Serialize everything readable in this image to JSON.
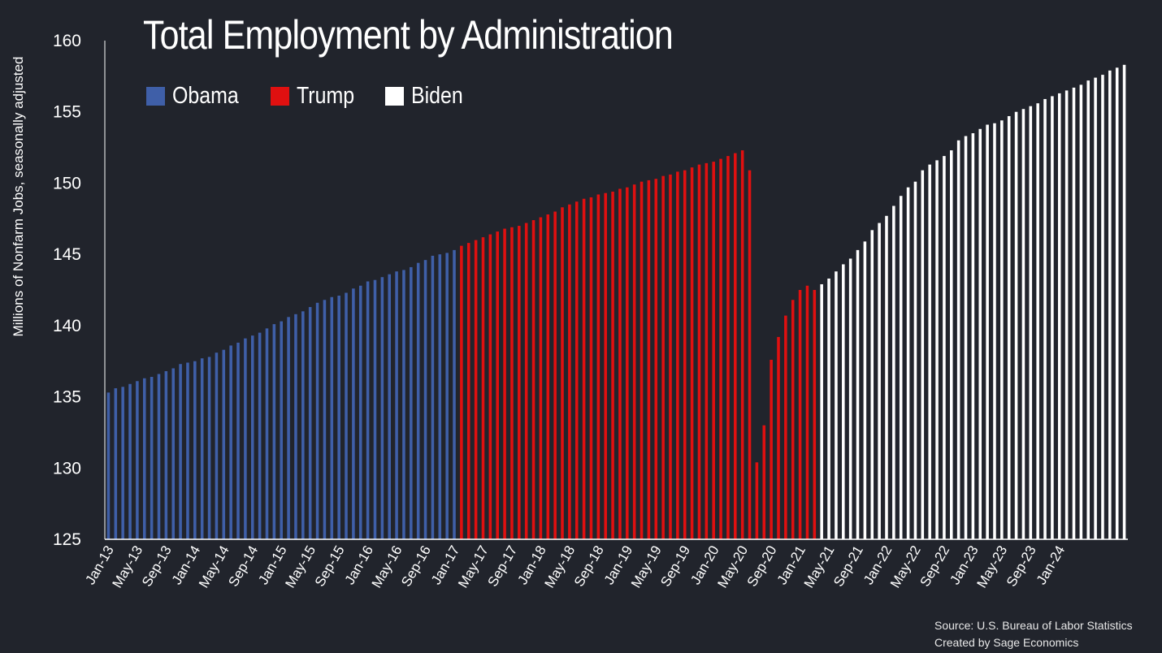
{
  "chart_data": {
    "type": "bar",
    "title": "Total Employment by Administration",
    "ylabel": "Millions of Nonfarm Jobs, seasonally adjusted",
    "xlabel": "",
    "ylim": [
      125,
      160
    ],
    "yticks": [
      125,
      130,
      135,
      140,
      145,
      150,
      155,
      160
    ],
    "grid": false,
    "legend_position": "top-left",
    "tick_labels": [
      "Jan-13",
      "May-13",
      "Sep-13",
      "Jan-14",
      "May-14",
      "Sep-14",
      "Jan-15",
      "May-15",
      "Sep-15",
      "Jan-16",
      "May-16",
      "Sep-16",
      "Jan-17",
      "May-17",
      "Sep-17",
      "Jan-18",
      "May-18",
      "Sep-18",
      "Jan-19",
      "May-19",
      "Sep-19",
      "Jan-20",
      "May-20",
      "Sep-20",
      "Jan-21",
      "May-21",
      "Sep-21",
      "Jan-22",
      "May-22",
      "Sep-22",
      "Jan-23",
      "May-23",
      "Sep-23",
      "Jan-24"
    ],
    "series": [
      {
        "name": "Obama",
        "color": "#3f5fa8",
        "start": "Jan-13",
        "values": [
          135.3,
          135.6,
          135.7,
          135.9,
          136.1,
          136.3,
          136.4,
          136.6,
          136.8,
          137.0,
          137.3,
          137.4,
          137.5,
          137.7,
          137.8,
          138.1,
          138.3,
          138.6,
          138.8,
          139.1,
          139.3,
          139.5,
          139.8,
          140.1,
          140.3,
          140.6,
          140.8,
          141.0,
          141.3,
          141.6,
          141.8,
          142.0,
          142.1,
          142.3,
          142.6,
          142.8,
          143.1,
          143.2,
          143.4,
          143.6,
          143.8,
          143.9,
          144.1,
          144.4,
          144.6,
          144.9,
          145.0,
          145.1,
          145.3
        ]
      },
      {
        "name": "Trump",
        "color": "#e01010",
        "start": "Feb-17",
        "values": [
          145.6,
          145.8,
          146.0,
          146.2,
          146.4,
          146.6,
          146.8,
          146.9,
          147.0,
          147.2,
          147.4,
          147.6,
          147.8,
          148.0,
          148.3,
          148.5,
          148.7,
          148.9,
          149.0,
          149.2,
          149.3,
          149.4,
          149.6,
          149.7,
          149.9,
          150.1,
          150.2,
          150.3,
          150.5,
          150.6,
          150.8,
          150.9,
          151.1,
          151.3,
          151.4,
          151.5,
          151.7,
          151.9,
          152.1,
          152.3,
          150.9,
          130.4,
          133.0,
          137.6,
          139.2,
          140.7,
          141.8,
          142.5,
          142.8,
          142.5
        ]
      },
      {
        "name": "Biden",
        "color": "#ffffff",
        "start": "Feb-21",
        "values": [
          142.9,
          143.3,
          143.8,
          144.3,
          144.7,
          145.3,
          145.9,
          146.7,
          147.2,
          147.7,
          148.4,
          149.1,
          149.7,
          150.1,
          150.9,
          151.3,
          151.6,
          151.9,
          152.3,
          153.0,
          153.3,
          153.5,
          153.8,
          154.1,
          154.2,
          154.4,
          154.7,
          155.0,
          155.2,
          155.4,
          155.6,
          155.9,
          156.1,
          156.3,
          156.5,
          156.7,
          156.9,
          157.2,
          157.4,
          157.6,
          157.9,
          158.1,
          158.3
        ]
      }
    ]
  },
  "source": {
    "line1": "Source: U.S. Bureau of Labor Statistics",
    "line2": "Created by Sage Economics"
  }
}
